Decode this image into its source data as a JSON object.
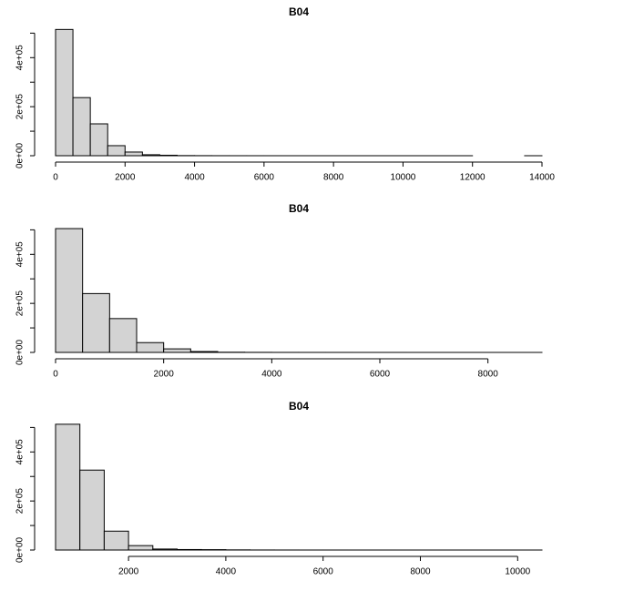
{
  "chart_data": [
    {
      "type": "histogram",
      "title": "B04",
      "bins": [
        0,
        500,
        1000,
        1500,
        2000,
        2500,
        3000,
        3500,
        4000,
        4500,
        5000,
        5500,
        6000,
        6500,
        7000,
        7500,
        8000,
        8500,
        9000,
        9500,
        10000,
        10500,
        11000,
        11500,
        12000,
        12500,
        13000,
        13500,
        14000
      ],
      "values": [
        515000,
        237000,
        130000,
        41000,
        15000,
        4000,
        2000,
        600,
        300,
        150,
        80,
        50,
        30,
        20,
        10,
        8,
        5,
        4,
        3,
        2,
        2,
        1,
        1,
        1,
        0,
        0,
        0,
        1
      ],
      "color": "#d3d3d3",
      "xlim": [
        0,
        14000
      ],
      "xticks": [
        0,
        2000,
        4000,
        6000,
        8000,
        10000,
        12000,
        14000
      ],
      "ylim": [
        0,
        520000
      ],
      "yticks": [
        {
          "value": 0,
          "label": "0e+00"
        },
        {
          "value": 100000,
          "label": null
        },
        {
          "value": 200000,
          "label": "2e+05"
        },
        {
          "value": 300000,
          "label": null
        },
        {
          "value": 400000,
          "label": "4e+05"
        },
        {
          "value": 500000,
          "label": null
        }
      ]
    },
    {
      "type": "histogram",
      "title": "B04",
      "bins": [
        0,
        500,
        1000,
        1500,
        2000,
        2500,
        3000,
        3500,
        4000,
        4500,
        5000,
        5500,
        6000,
        6500,
        7000,
        7500,
        8000,
        8500,
        9000
      ],
      "values": [
        505000,
        240000,
        138000,
        40000,
        14500,
        3600,
        800,
        300,
        150,
        80,
        40,
        20,
        10,
        6,
        4,
        2,
        1,
        1
      ],
      "color": "#d3d3d3",
      "xlim": [
        0,
        9000
      ],
      "xticks": [
        0,
        2000,
        4000,
        6000,
        8000
      ],
      "ylim": [
        0,
        520000
      ],
      "yticks": [
        {
          "value": 0,
          "label": "0e+00"
        },
        {
          "value": 100000,
          "label": null
        },
        {
          "value": 200000,
          "label": "2e+05"
        },
        {
          "value": 300000,
          "label": null
        },
        {
          "value": 400000,
          "label": "4e+05"
        },
        {
          "value": 500000,
          "label": null
        }
      ]
    },
    {
      "type": "histogram",
      "title": "B04",
      "bins": [
        500,
        1000,
        1500,
        2000,
        2500,
        3000,
        3500,
        4000,
        4500,
        5000,
        5500,
        6000,
        6500,
        7000,
        7500,
        8000,
        8500,
        9000,
        9500,
        10000,
        10500
      ],
      "values": [
        513000,
        326000,
        77000,
        18000,
        4000,
        2000,
        1500,
        600,
        200,
        100,
        50,
        30,
        20,
        10,
        5,
        3,
        2,
        1,
        1,
        1
      ],
      "color": "#d3d3d3",
      "xlim": [
        500,
        10500
      ],
      "xticks": [
        2000,
        4000,
        6000,
        8000,
        10000
      ],
      "ylim": [
        0,
        520000
      ],
      "yticks": [
        {
          "value": 0,
          "label": "0e+00"
        },
        {
          "value": 100000,
          "label": null
        },
        {
          "value": 200000,
          "label": "2e+05"
        },
        {
          "value": 300000,
          "label": null
        },
        {
          "value": 400000,
          "label": "4e+05"
        },
        {
          "value": 500000,
          "label": null
        }
      ]
    }
  ]
}
